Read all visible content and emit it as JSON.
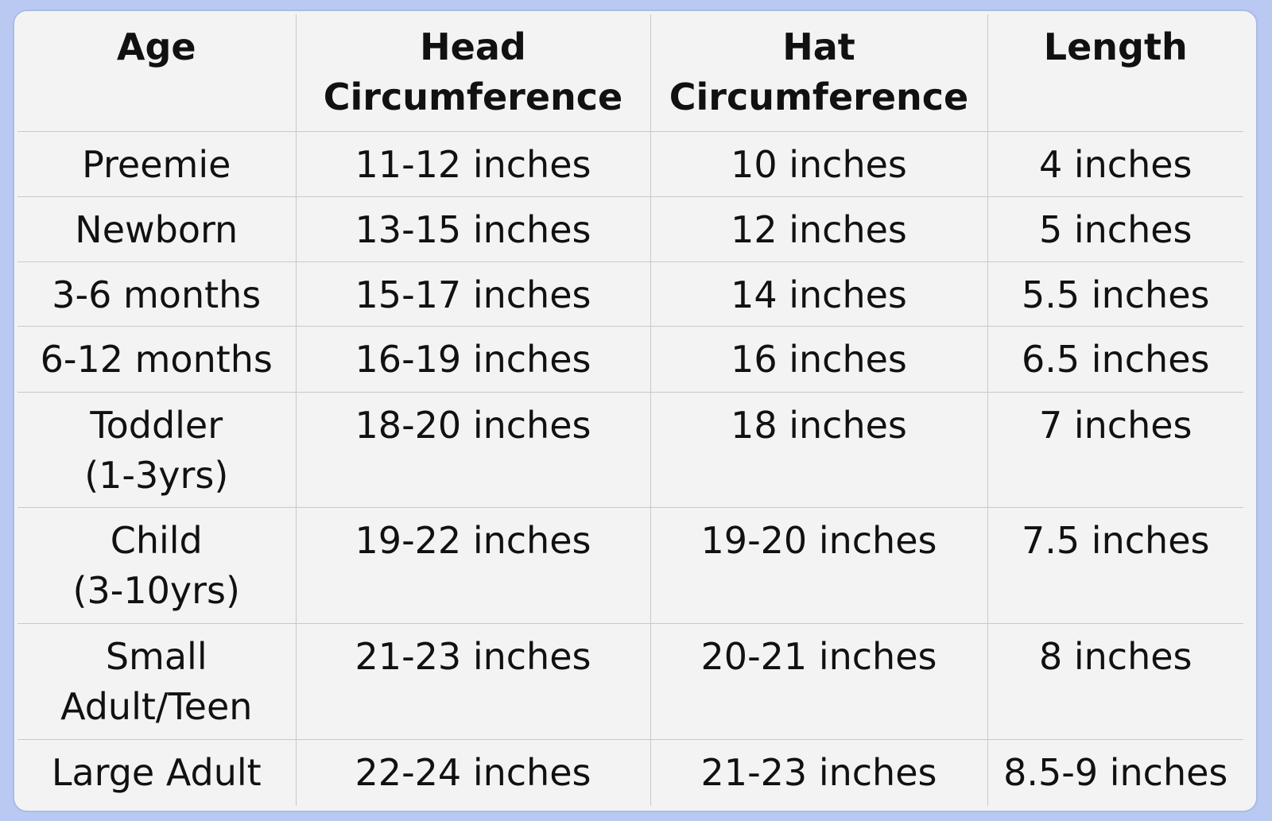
{
  "table": {
    "header": [
      "Age",
      "Head\nCircumference",
      "Hat\nCircumference",
      "Length"
    ],
    "rows": [
      [
        "Preemie",
        "11-12 inches",
        "10 inches",
        "4 inches"
      ],
      [
        "Newborn",
        "13-15 inches",
        "12 inches",
        "5 inches"
      ],
      [
        "3-6 months",
        "15-17 inches",
        "14 inches",
        "5.5 inches"
      ],
      [
        "6-12 months",
        "16-19 inches",
        "16 inches",
        "6.5 inches"
      ],
      [
        "Toddler\n(1-3yrs)",
        "18-20 inches",
        "18 inches",
        "7 inches"
      ],
      [
        "Child\n(3-10yrs)",
        "19-22 inches",
        "19-20 inches",
        "7.5 inches"
      ],
      [
        "Small\nAdult/Teen",
        "21-23 inches",
        "20-21 inches",
        "8 inches"
      ],
      [
        "Large Adult",
        "22-24 inches",
        "21-23 inches",
        "8.5-9 inches"
      ]
    ]
  }
}
